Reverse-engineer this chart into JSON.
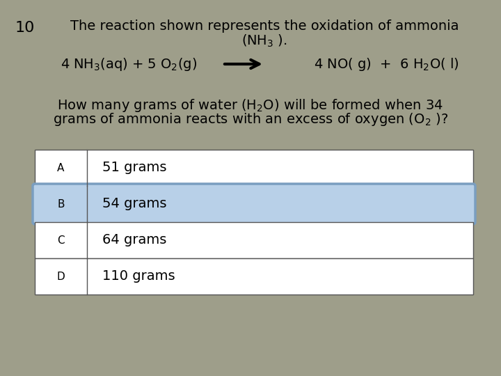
{
  "question_number": "10",
  "title_line1": "The reaction shown represents the oxidation of ammonia",
  "title_line2": "(NH$_3$ ).",
  "reaction_left": "4 NH$_3$(aq) + 5 O$_2$(g)",
  "reaction_right": "4 NO( g)  +  6 H$_2$O( l)",
  "question_text_line1": "How many grams of water (H$_2$O) will be formed when 34",
  "question_text_line2": "grams of ammonia reacts with an excess of oxygen (O$_2$ )?",
  "options": [
    {
      "label": "A",
      "text": "51 grams",
      "selected": false
    },
    {
      "label": "B",
      "text": "54 grams",
      "selected": true
    },
    {
      "label": "C",
      "text": "64 grams",
      "selected": false
    },
    {
      "label": "D",
      "text": "110 grams",
      "selected": false
    }
  ],
  "bg_color": "#9E9E8A",
  "table_bg": "#FFFFFF",
  "selected_bg": "#B8D0E8",
  "selected_border": "#7A9EC0",
  "text_color": "#000000",
  "title_fontsize": 14,
  "reaction_fontsize": 14,
  "question_fontsize": 14,
  "option_label_fontsize": 11,
  "option_text_fontsize": 14,
  "qnum_fontsize": 16
}
